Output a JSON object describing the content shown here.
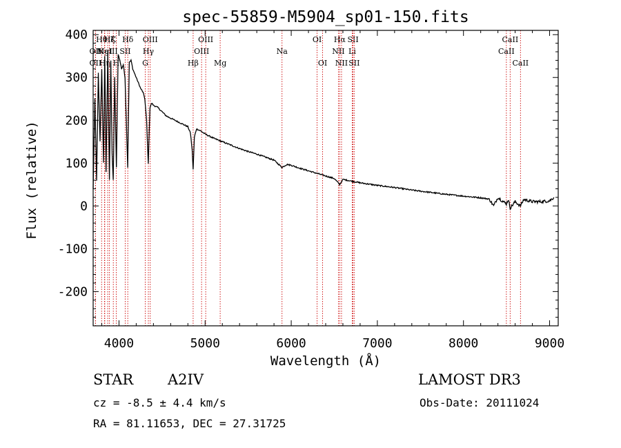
{
  "chart_data": {
    "type": "line",
    "title": "spec-55859-M5904_sp01-150.fits",
    "xlabel": "Wavelength (Å)",
    "ylabel": "Flux (relative)",
    "xlim": [
      3700,
      9100
    ],
    "ylim": [
      -280,
      410
    ],
    "xticks": [
      4000,
      5000,
      6000,
      7000,
      8000,
      9000
    ],
    "yticks": [
      -200,
      -100,
      0,
      100,
      200,
      300,
      400
    ],
    "series": [
      {
        "name": "spectrum",
        "x": [
          3700,
          3720,
          3740,
          3760,
          3780,
          3800,
          3820,
          3835,
          3850,
          3870,
          3889,
          3905,
          3920,
          3933,
          3950,
          3970,
          3990,
          4010,
          4030,
          4050,
          4070,
          4085,
          4101,
          4120,
          4140,
          4160,
          4180,
          4200,
          4220,
          4250,
          4280,
          4300,
          4320,
          4340,
          4360,
          4380,
          4400,
          4450,
          4500,
          4550,
          4600,
          4650,
          4700,
          4750,
          4800,
          4830,
          4850,
          4861,
          4875,
          4900,
          4950,
          5000,
          5100,
          5200,
          5300,
          5400,
          5500,
          5600,
          5700,
          5800,
          5893,
          5950,
          6000,
          6100,
          6200,
          6300,
          6400,
          6500,
          6563,
          6600,
          6700,
          6800,
          6900,
          7000,
          7200,
          7400,
          7600,
          7800,
          8000,
          8200,
          8300,
          8350,
          8400,
          8450,
          8498,
          8520,
          8542,
          8600,
          8662,
          8700,
          8800,
          8900,
          9000,
          9050
        ],
        "y": [
          40,
          250,
          60,
          310,
          150,
          320,
          100,
          350,
          80,
          360,
          60,
          340,
          120,
          60,
          300,
          90,
          355,
          340,
          320,
          330,
          300,
          200,
          90,
          335,
          340,
          320,
          310,
          300,
          290,
          275,
          265,
          250,
          200,
          100,
          230,
          240,
          235,
          230,
          220,
          210,
          205,
          200,
          195,
          190,
          185,
          170,
          130,
          85,
          160,
          180,
          175,
          168,
          158,
          150,
          142,
          134,
          127,
          121,
          114,
          107,
          90,
          97,
          95,
          88,
          82,
          76,
          70,
          64,
          50,
          62,
          58,
          54,
          51,
          48,
          43,
          37,
          32,
          27,
          23,
          19,
          16,
          0,
          20,
          12,
          5,
          15,
          -5,
          10,
          0,
          15,
          10,
          10,
          12,
          20
        ]
      }
    ],
    "line_markers": [
      {
        "label": "OII",
        "wavelength": 3727,
        "row": 2
      },
      {
        "label": "OII",
        "wavelength": 3727,
        "row": 3
      },
      {
        "label": "Hθ",
        "wavelength": 3798,
        "row": 1
      },
      {
        "label": "Hη",
        "wavelength": 3835,
        "row": 3
      },
      {
        "label": "MgI",
        "wavelength": 3832,
        "row": 2
      },
      {
        "label": "Hζ",
        "wavelength": 3889,
        "row": 1
      },
      {
        "label": "K",
        "wavelength": 3934,
        "row": 1
      },
      {
        "label": "H",
        "wavelength": 3968,
        "row": 3
      },
      {
        "label": "NeIII",
        "wavelength": 3869,
        "row": 2
      },
      {
        "label": "SII",
        "wavelength": 4072,
        "row": 2
      },
      {
        "label": "Hδ",
        "wavelength": 4102,
        "row": 1
      },
      {
        "label": "OIII",
        "wavelength": 4363,
        "row": 1
      },
      {
        "label": "Hγ",
        "wavelength": 4341,
        "row": 2
      },
      {
        "label": "G",
        "wavelength": 4305,
        "row": 3
      },
      {
        "label": "Hβ",
        "wavelength": 4861,
        "row": 3
      },
      {
        "label": "OIII",
        "wavelength": 5007,
        "row": 1
      },
      {
        "label": "OIII",
        "wavelength": 4959,
        "row": 2
      },
      {
        "label": "Mg",
        "wavelength": 5175,
        "row": 3
      },
      {
        "label": "Na",
        "wavelength": 5893,
        "row": 2
      },
      {
        "label": "OI",
        "wavelength": 6300,
        "row": 1
      },
      {
        "label": "OI",
        "wavelength": 6364,
        "row": 3
      },
      {
        "label": "Hα",
        "wavelength": 6563,
        "row": 1
      },
      {
        "label": "NII",
        "wavelength": 6548,
        "row": 2
      },
      {
        "label": "NII",
        "wavelength": 6584,
        "row": 3
      },
      {
        "label": "SII",
        "wavelength": 6717,
        "row": 1
      },
      {
        "label": "Li",
        "wavelength": 6708,
        "row": 2
      },
      {
        "label": "SII",
        "wavelength": 6731,
        "row": 3
      },
      {
        "label": "CaII",
        "wavelength": 8542,
        "row": 1
      },
      {
        "label": "CaII",
        "wavelength": 8498,
        "row": 2
      },
      {
        "label": "CaII",
        "wavelength": 8662,
        "row": 3
      }
    ],
    "marker_color": "#cc0000",
    "line_color": "#000000"
  },
  "info": {
    "class": "STAR",
    "subclass": "A2IV",
    "survey": "LAMOST DR3",
    "cz": "cz = -8.5 ± 4.4 km/s",
    "obs_date": "Obs-Date: 20111024",
    "coords": "RA =  81.11653, DEC =  27.31725"
  }
}
